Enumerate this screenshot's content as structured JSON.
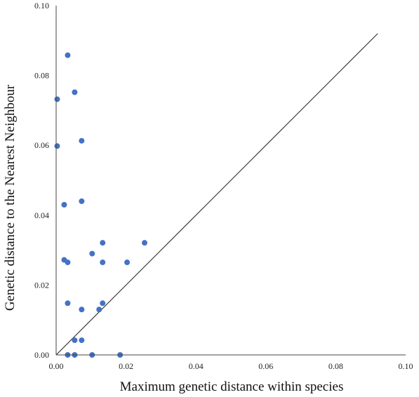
{
  "chart_data": {
    "type": "scatter",
    "title": "",
    "xlabel": "Maximum genetic distance within species",
    "ylabel": "Genetic distance to the Nearest Neighbour",
    "xlim": [
      0,
      0.1
    ],
    "ylim": [
      0,
      0.1
    ],
    "xticks": [
      "0.00",
      "0.02",
      "0.04",
      "0.06",
      "0.08",
      "0.10"
    ],
    "yticks": [
      "0.00",
      "0.02",
      "0.04",
      "0.06",
      "0.08",
      "0.10"
    ],
    "grid": false,
    "reference_line": {
      "x": [
        0,
        0.092
      ],
      "y": [
        0,
        0.092
      ]
    },
    "marker_color": "#4472c4",
    "points": [
      {
        "x": 0.0033,
        "y": 0.0858
      },
      {
        "x": 0.0053,
        "y": 0.0752
      },
      {
        "x": 0.0003,
        "y": 0.0732
      },
      {
        "x": 0.0073,
        "y": 0.0613
      },
      {
        "x": 0.0003,
        "y": 0.0598
      },
      {
        "x": 0.0073,
        "y": 0.044
      },
      {
        "x": 0.0023,
        "y": 0.043
      },
      {
        "x": 0.0133,
        "y": 0.0321
      },
      {
        "x": 0.0253,
        "y": 0.0321
      },
      {
        "x": 0.0103,
        "y": 0.029
      },
      {
        "x": 0.0023,
        "y": 0.0272
      },
      {
        "x": 0.0033,
        "y": 0.0265
      },
      {
        "x": 0.0133,
        "y": 0.0265
      },
      {
        "x": 0.0203,
        "y": 0.0265
      },
      {
        "x": 0.0033,
        "y": 0.0148
      },
      {
        "x": 0.0133,
        "y": 0.0148
      },
      {
        "x": 0.0073,
        "y": 0.013
      },
      {
        "x": 0.0123,
        "y": 0.013
      },
      {
        "x": 0.0053,
        "y": 0.0042
      },
      {
        "x": 0.0073,
        "y": 0.0042
      },
      {
        "x": 0.0033,
        "y": 0.0
      },
      {
        "x": 0.0053,
        "y": 0.0
      },
      {
        "x": 0.0103,
        "y": 0.0
      },
      {
        "x": 0.0183,
        "y": 0.0
      }
    ]
  }
}
